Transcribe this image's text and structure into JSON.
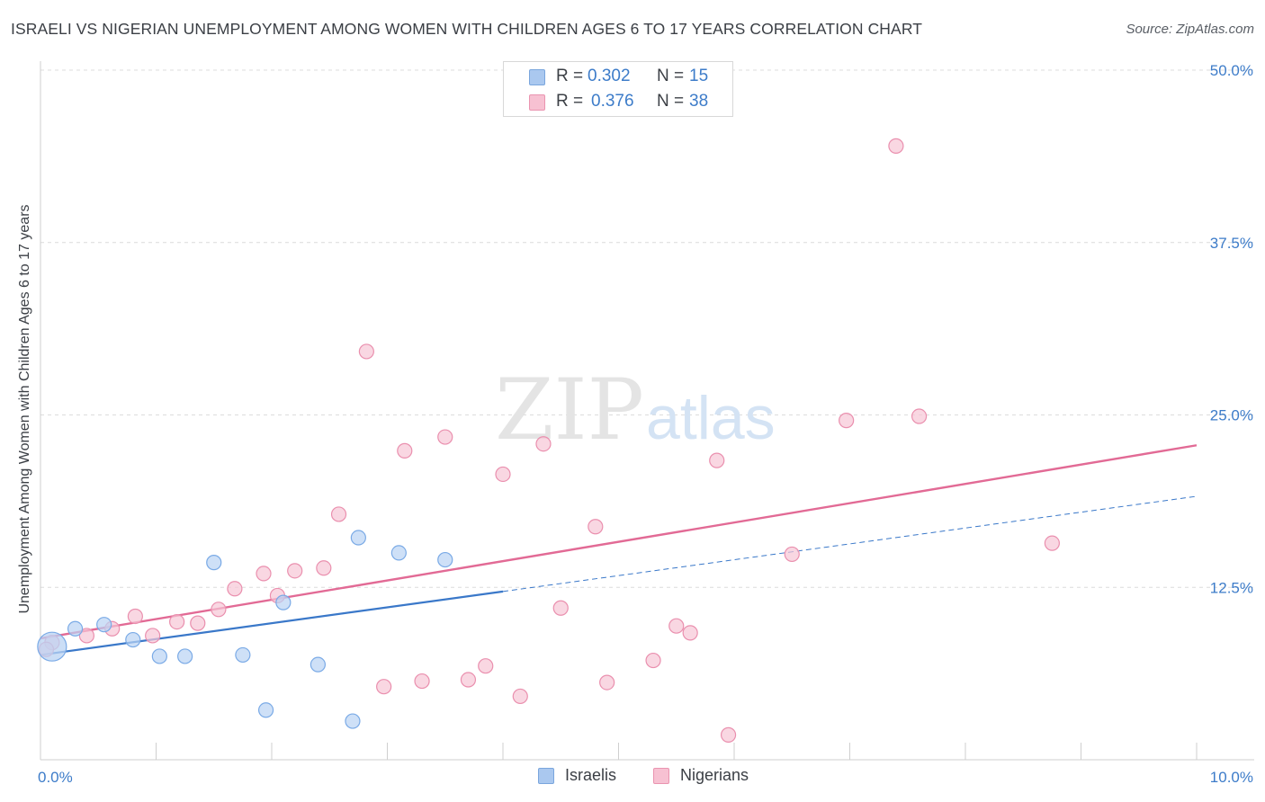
{
  "title": "ISRAELI VS NIGERIAN UNEMPLOYMENT AMONG WOMEN WITH CHILDREN AGES 6 TO 17 YEARS CORRELATION CHART",
  "source": "Source: ZipAtlas.com",
  "watermark": {
    "zip": "ZIP",
    "atlas": "atlas"
  },
  "legend_top": [
    {
      "r_label": "R =",
      "r_value": "0.302",
      "n_label": "N =",
      "n_value": "15",
      "color": "#aac8ef",
      "border": "#7aa6dd"
    },
    {
      "r_label": "R =",
      "r_value": "0.376",
      "n_label": "N =",
      "n_value": "38",
      "color": "#f7c1d2",
      "border": "#ea94b0"
    }
  ],
  "legend_bottom": [
    {
      "label": "Israelis",
      "color": "#aac8ef",
      "border": "#7aa6dd"
    },
    {
      "label": "Nigerians",
      "color": "#f7c1d2",
      "border": "#ea94b0"
    }
  ],
  "chart_data": {
    "type": "scatter",
    "xlabel": "",
    "ylabel": "Unemployment Among Women with Children Ages 6 to 17 years",
    "xlim": [
      0,
      10
    ],
    "ylim": [
      0,
      50
    ],
    "x_tick_labels": [
      "0.0%",
      "10.0%"
    ],
    "y_ticks": [
      12.5,
      25.0,
      37.5,
      50.0
    ],
    "y_tick_labels": [
      "12.5%",
      "25.0%",
      "37.5%",
      "50.0%"
    ],
    "grid": true,
    "series": [
      {
        "name": "Israelis",
        "color": "#7aaae6",
        "fill": "#b9d3f3",
        "points": [
          [
            0.1,
            8.2
          ],
          [
            0.3,
            9.5
          ],
          [
            0.55,
            9.8
          ],
          [
            0.8,
            8.7
          ],
          [
            1.03,
            7.5
          ],
          [
            1.25,
            7.5
          ],
          [
            1.5,
            14.3
          ],
          [
            1.75,
            7.6
          ],
          [
            1.95,
            3.6
          ],
          [
            2.1,
            11.4
          ],
          [
            2.4,
            6.9
          ],
          [
            2.7,
            2.8
          ],
          [
            2.75,
            16.1
          ],
          [
            3.1,
            15.0
          ],
          [
            3.5,
            14.5
          ]
        ],
        "big_point": [
          0.1,
          8.2
        ],
        "trend": {
          "x0": 0.0,
          "y0": 7.6,
          "x1": 4.0,
          "y1": 12.2,
          "dash_x1": 10.0,
          "dash_y1": 19.1
        }
      },
      {
        "name": "Nigerians",
        "color": "#ea8fae",
        "fill": "#f7c6d6",
        "points": [
          [
            0.1,
            8.5
          ],
          [
            0.4,
            9.0
          ],
          [
            0.62,
            9.5
          ],
          [
            0.82,
            10.4
          ],
          [
            0.97,
            9.0
          ],
          [
            1.18,
            10.0
          ],
          [
            1.36,
            9.9
          ],
          [
            1.54,
            10.9
          ],
          [
            1.68,
            12.4
          ],
          [
            1.93,
            13.5
          ],
          [
            2.05,
            11.9
          ],
          [
            2.2,
            13.7
          ],
          [
            2.45,
            13.9
          ],
          [
            2.58,
            17.8
          ],
          [
            2.82,
            29.6
          ],
          [
            2.97,
            5.3
          ],
          [
            3.15,
            22.4
          ],
          [
            3.3,
            5.7
          ],
          [
            3.5,
            23.4
          ],
          [
            3.7,
            5.8
          ],
          [
            3.85,
            6.8
          ],
          [
            4.0,
            20.7
          ],
          [
            4.15,
            4.6
          ],
          [
            4.35,
            22.9
          ],
          [
            4.5,
            11.0
          ],
          [
            4.8,
            16.9
          ],
          [
            4.9,
            5.6
          ],
          [
            5.3,
            7.2
          ],
          [
            5.5,
            9.7
          ],
          [
            5.62,
            9.2
          ],
          [
            5.85,
            21.7
          ],
          [
            5.95,
            1.8
          ],
          [
            6.5,
            14.9
          ],
          [
            6.97,
            24.6
          ],
          [
            7.4,
            44.5
          ],
          [
            7.6,
            24.9
          ],
          [
            8.75,
            15.7
          ],
          [
            0.05,
            8.0
          ]
        ],
        "trend": {
          "x0": 0.0,
          "y0": 8.8,
          "x1": 10.0,
          "y1": 22.8
        }
      }
    ]
  }
}
